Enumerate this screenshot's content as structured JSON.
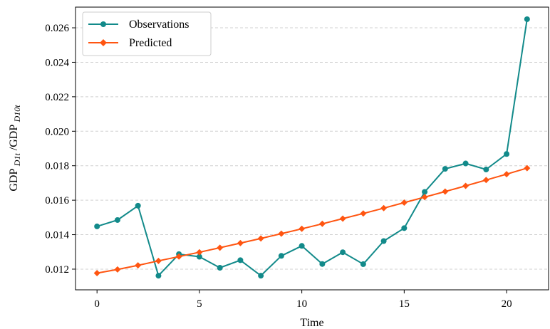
{
  "chart_data": {
    "type": "line",
    "title": "",
    "xlabel": "Time",
    "ylabel_main": "GDP",
    "ylabel_sub1": "D1t",
    "ylabel_slash": "/GDP",
    "ylabel_sub2": "D10t",
    "xlim": [
      -1.05,
      22.05
    ],
    "ylim": [
      0.0108,
      0.0272
    ],
    "xticks": [
      0,
      5,
      10,
      15,
      20
    ],
    "yticks": [
      0.012,
      0.014,
      0.016,
      0.018,
      0.02,
      0.022,
      0.024,
      0.026
    ],
    "ytick_labels": [
      "0.012",
      "0.014",
      "0.016",
      "0.018",
      "0.020",
      "0.022",
      "0.024",
      "0.026"
    ],
    "grid": {
      "axis": "y",
      "style": "dashed"
    },
    "legend_position": "top-left",
    "x": [
      0,
      1,
      2,
      3,
      4,
      5,
      6,
      7,
      8,
      9,
      10,
      11,
      12,
      13,
      14,
      15,
      16,
      17,
      18,
      19,
      20,
      21
    ],
    "series": [
      {
        "name": "Observations",
        "color": "#128a8a",
        "marker": "circle",
        "values": [
          0.01448,
          0.01485,
          0.01568,
          0.01162,
          0.01287,
          0.01272,
          0.01208,
          0.01252,
          0.01162,
          0.01277,
          0.01335,
          0.0123,
          0.01298,
          0.01229,
          0.01363,
          0.01438,
          0.01648,
          0.01782,
          0.01813,
          0.01778,
          0.01868,
          0.0265
        ]
      },
      {
        "name": "Predicted",
        "color": "#ff5511",
        "marker": "diamond",
        "values": [
          0.01177,
          0.01198,
          0.01222,
          0.01248,
          0.01273,
          0.01298,
          0.01324,
          0.01351,
          0.01378,
          0.01406,
          0.01434,
          0.01463,
          0.01493,
          0.01523,
          0.01554,
          0.01586,
          0.01618,
          0.0165,
          0.01683,
          0.01717,
          0.01751,
          0.01786
        ]
      }
    ]
  }
}
